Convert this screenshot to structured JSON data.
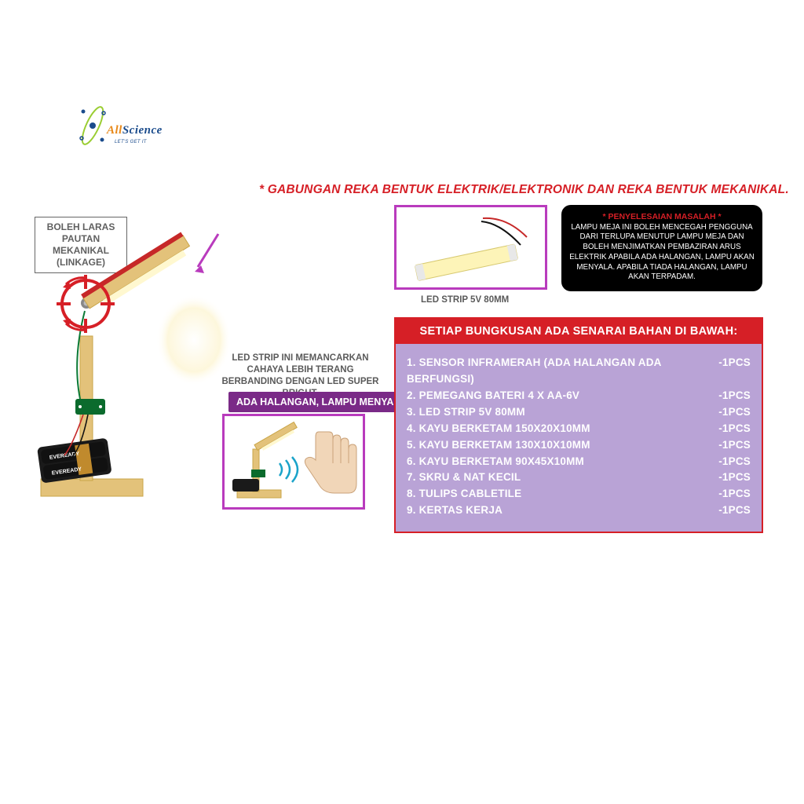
{
  "logo": {
    "brand_a": "All",
    "brand_b": "Science",
    "tagline": "LET'S GET IT",
    "colors": {
      "blue": "#1a4b8c",
      "orange": "#e8891a",
      "lime": "#9acd32"
    }
  },
  "headline": "* GABUNGAN REKA BENTUK ELEKTRIK/ELEKTRONIK DAN REKA BENTUK MEKANIKAL.",
  "linkage_box": {
    "line1": "BOLEH LARAS",
    "line2": "PAUTAN MEKANIKAL",
    "line3": "(LINKAGE)"
  },
  "led_desc": "LED STRIP INI MEMANCARKAN CAHAYA LEBIH TERANG BERBANDING DENGAN LED SUPER BRIGHT.",
  "purple_tag": "ADA HALANGAN, LAMPU MENYALA",
  "led_strip_caption": "LED STRIP 5V 80MM",
  "black_pill": {
    "title": "* PENYELESAIAN MASALAH *",
    "body": "LAMPU MEJA INI BOLEH MENCEGAH PENGGUNA DARI TERLUPA MENUTUP LAMPU MEJA DAN BOLEH MENJIMATKAN PEMBAZIRAN ARUS ELEKTRIK APABILA ADA HALANGAN, LAMPU AKAN MENYALA. APABILA TIADA HALANGAN, LAMPU AKAN TERPADAM."
  },
  "materials": {
    "header": "SETIAP BUNGKUSAN ADA SENARAI BAHAN DI BAWAH:",
    "rows": [
      {
        "name": "1. SENSOR INFRAMERAH (ADA HALANGAN ADA BERFUNGSI)",
        "qty": "-1PCS"
      },
      {
        "name": "2. PEMEGANG BATERI 4 X AA-6V",
        "qty": "-1PCS"
      },
      {
        "name": "3. LED STRIP 5V 80MM",
        "qty": "-1PCS"
      },
      {
        "name": "4. KAYU BERKETAM 150X20X10MM",
        "qty": "-1PCS"
      },
      {
        "name": "5. KAYU BERKETAM 130X10X10MM",
        "qty": "-1PCS"
      },
      {
        "name": "6. KAYU BERKETAM 90X45X10MM",
        "qty": "-1PCS"
      },
      {
        "name": "7. SKRU & NAT KECIL",
        "qty": "-1PCS"
      },
      {
        "name": "8. TULIPS CABLETILE",
        "qty": "-1PCS"
      },
      {
        "name": "9. KERTAS KERJA",
        "qty": "-1PCS"
      }
    ]
  },
  "colors": {
    "red": "#d61f26",
    "magenta_border": "#b93bbd",
    "purple": "#7a2a87",
    "lavender_panel": "#b9a3d6",
    "grey_text": "#5a5a5a",
    "box_border": "#666",
    "wood": "#e3c27a",
    "wood_dark": "#c9a548",
    "battery": "#1a1a1a",
    "battery_stripe": "#c08a2d",
    "pcb": "#0b6b2d",
    "wire_red": "#c62828",
    "wire_black": "#111",
    "led_glow": "#fff8d0"
  }
}
